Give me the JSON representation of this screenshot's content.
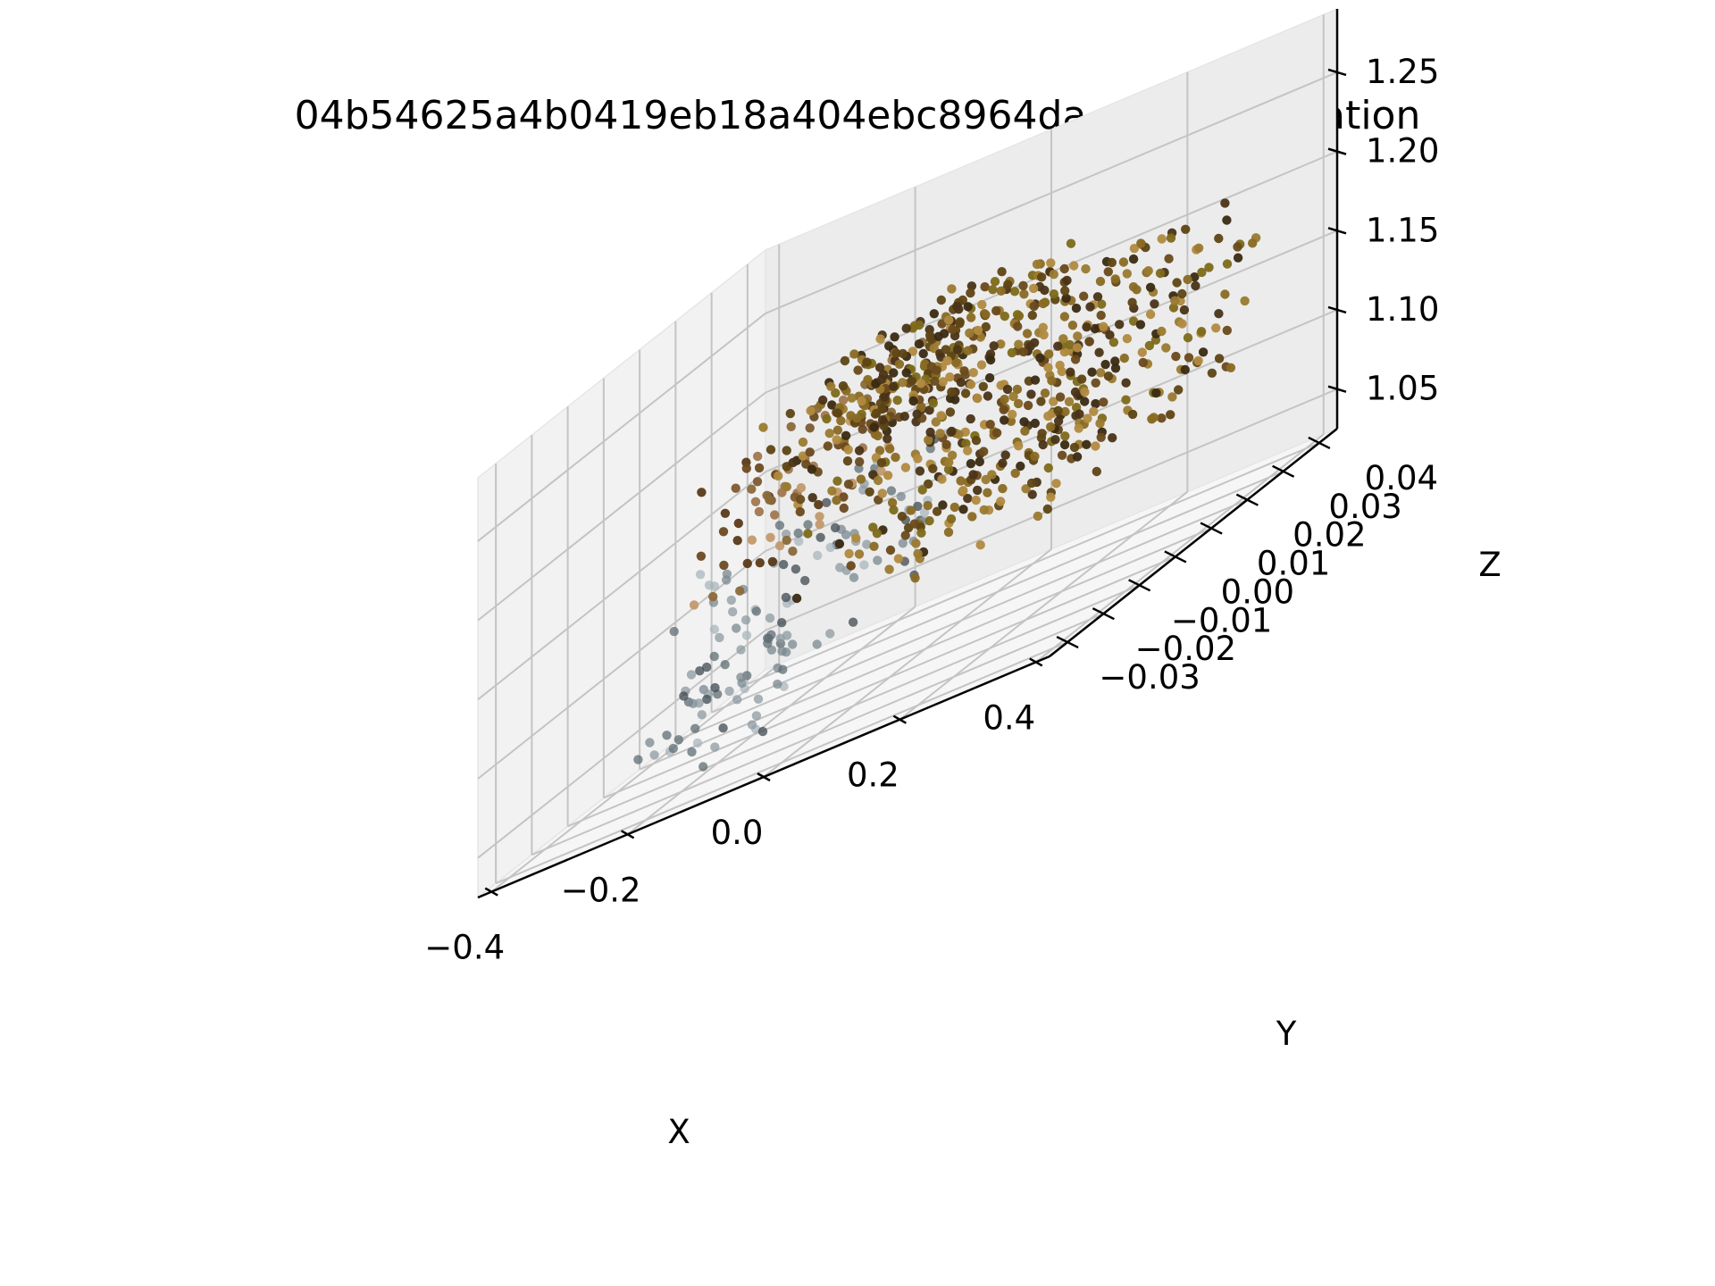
{
  "chart_data": {
    "type": "scatter3d",
    "title": "04b54625a4b0419eb18a404ebc8964da.glb Visualization",
    "xlabel": "X",
    "ylabel": "Y",
    "zlabel": "Z",
    "x_ticks": [
      "−0.4",
      "−0.2",
      "0.0",
      "0.2",
      "0.4"
    ],
    "x_tick_values": [
      -0.4,
      -0.2,
      0.0,
      0.2,
      0.4
    ],
    "y_ticks": [
      "−0.03",
      "−0.02",
      "−0.01",
      "0.00",
      "0.01",
      "0.02",
      "0.03",
      "0.04"
    ],
    "y_tick_values": [
      -0.03,
      -0.02,
      -0.01,
      0.0,
      0.01,
      0.02,
      0.03,
      0.04
    ],
    "z_ticks": [
      "1.05",
      "1.10",
      "1.15",
      "1.20",
      "1.25"
    ],
    "z_tick_values": [
      1.05,
      1.1,
      1.15,
      1.2,
      1.25
    ],
    "xlim": [
      -0.42,
      0.42
    ],
    "ylim": [
      -0.035,
      0.045
    ],
    "zlim": [
      1.025,
      1.29
    ],
    "grid": true,
    "series": [
      {
        "colors": [
          "#7a8890",
          "#5f6d74",
          "#aab6bc",
          "#3f4a50",
          "#8c9aa0"
        ],
        "regions": [
          {
            "x": [
              -0.3,
              -0.2
            ],
            "y": [
              -0.02,
              0.02
            ],
            "z": [
              1.02,
              1.08
            ],
            "count": 40
          },
          {
            "x": [
              -0.24,
              -0.08
            ],
            "y": [
              -0.02,
              0.04
            ],
            "z": [
              1.06,
              1.15
            ],
            "count": 90
          }
        ]
      },
      {
        "colors": [
          "#8b6a3a",
          "#6b4a22",
          "#a07850",
          "#c29a6b",
          "#5a3a18",
          "#7d5a30"
        ],
        "regions": [
          {
            "x": [
              -0.2,
              -0.1
            ],
            "y": [
              -0.02,
              0.03
            ],
            "z": [
              1.13,
              1.21
            ],
            "count": 80
          }
        ]
      },
      {
        "colors": [
          "#4a3418",
          "#6a4a1c",
          "#8a6a24",
          "#7d6a1a",
          "#3a2a12",
          "#9a7a30",
          "#5e4414",
          "#b08a40"
        ],
        "regions": [
          {
            "x": [
              -0.2,
              0.05
            ],
            "y": [
              0.0,
              0.045
            ],
            "z": [
              1.17,
              1.22
            ],
            "count": 260
          },
          {
            "x": [
              0.0,
              0.36
            ],
            "y": [
              -0.03,
              0.04
            ],
            "z": [
              1.1,
              1.21
            ],
            "count": 430
          }
        ]
      }
    ]
  }
}
